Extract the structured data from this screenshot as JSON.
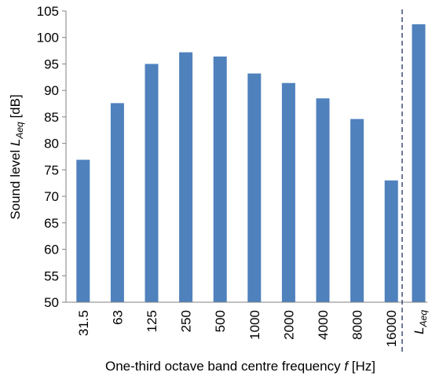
{
  "chart_data": {
    "type": "bar",
    "categories": [
      "31.5",
      "63",
      "125",
      "250",
      "500",
      "1000",
      "2000",
      "4000",
      "8000",
      "16000"
    ],
    "values": [
      76.9,
      87.6,
      95.0,
      97.2,
      96.4,
      93.2,
      91.4,
      88.5,
      84.6,
      73.0
    ],
    "summary_bar": {
      "label_main": "L",
      "label_sub": "Aeq",
      "value": 102.5
    },
    "xlabel_prefix": "One-third octave band centre frequency ",
    "xlabel_var": "f",
    "xlabel_suffix": " [Hz]",
    "ylabel_prefix": "Sound level ",
    "ylabel_var": "L",
    "ylabel_sub": "Aeq",
    "ylabel_suffix": " [dB]",
    "ylim": [
      50,
      105
    ],
    "yticks": [
      50,
      55,
      60,
      65,
      70,
      75,
      80,
      85,
      90,
      95,
      100,
      105
    ],
    "grid": false,
    "colors": {
      "bar": "#4f81bd",
      "axis": "#808080",
      "divider": "#3a4a7a"
    }
  }
}
